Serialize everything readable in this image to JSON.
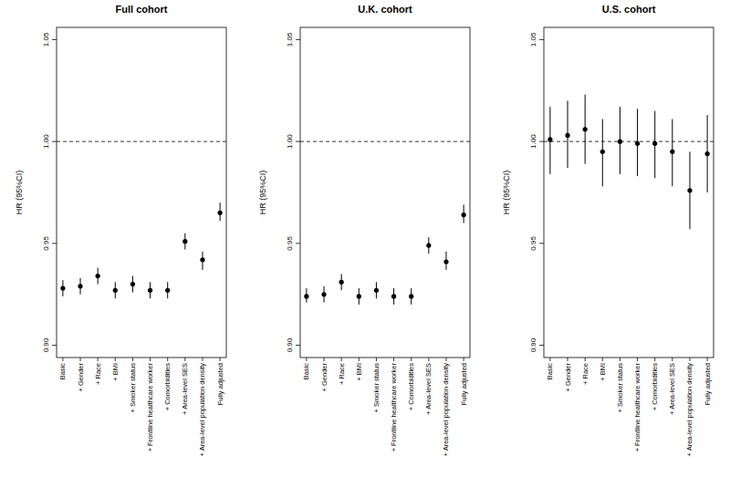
{
  "chart_data": [
    {
      "type": "scatter",
      "title": "Full cohort",
      "y_label": "HR (95%CI)",
      "color": "#000000",
      "marker": "circle",
      "categories": [
        "Basic",
        "+ Gender",
        "+ Race",
        "+ BMI",
        "+ Smoker status",
        "+ Frontline healthcare worker",
        "+ Comorbidities",
        "+ Area-level SES",
        "+ Area-level population density",
        "Fully adjusted"
      ],
      "values": [
        0.928,
        0.929,
        0.934,
        0.927,
        0.93,
        0.927,
        0.927,
        0.951,
        0.942,
        0.965
      ],
      "ci_lower": [
        0.924,
        0.925,
        0.93,
        0.923,
        0.926,
        0.923,
        0.923,
        0.947,
        0.937,
        0.961
      ],
      "ci_upper": [
        0.932,
        0.933,
        0.938,
        0.931,
        0.934,
        0.931,
        0.931,
        0.955,
        0.946,
        0.97
      ],
      "reference_line": 1,
      "ylim": [
        0.894,
        1.056
      ],
      "yticks": [
        {
          "value": 0.9,
          "label": "0.90"
        },
        {
          "value": 0.95,
          "label": "0.95"
        },
        {
          "value": 1,
          "label": "1.00"
        },
        {
          "value": 1.05,
          "label": "1.05"
        }
      ]
    },
    {
      "type": "scatter",
      "title": "U.K. cohort",
      "y_label": "HR (95%CI)",
      "color": "#000000",
      "marker": "circle",
      "categories": [
        "Basic",
        "+ Gender",
        "+ Race",
        "+ BMI",
        "+ Smoker status",
        "+ Frontline healthcare worker",
        "+ Comorbidities",
        "+ Area-level SES",
        "+ Area-level population density",
        "Fully adjusted"
      ],
      "values": [
        0.924,
        0.925,
        0.931,
        0.924,
        0.927,
        0.924,
        0.924,
        0.949,
        0.941,
        0.964
      ],
      "ci_lower": [
        0.921,
        0.921,
        0.927,
        0.92,
        0.923,
        0.92,
        0.92,
        0.945,
        0.937,
        0.96
      ],
      "ci_upper": [
        0.928,
        0.929,
        0.935,
        0.928,
        0.931,
        0.928,
        0.928,
        0.953,
        0.946,
        0.969
      ],
      "reference_line": 1,
      "ylim": [
        0.894,
        1.056
      ],
      "yticks": [
        {
          "value": 0.9,
          "label": "0.90"
        },
        {
          "value": 0.95,
          "label": "0.95"
        },
        {
          "value": 1,
          "label": "1.00"
        },
        {
          "value": 1.05,
          "label": "1.05"
        }
      ]
    },
    {
      "type": "scatter",
      "title": "U.S. cohort",
      "y_label": "HR (95%CI)",
      "color": "#000000",
      "marker": "circle",
      "categories": [
        "Basic",
        "+ Gender",
        "+ Race",
        "+ BMI",
        "+ Smoker status",
        "+ Frontline healthcare worker",
        "+ Comorbidities",
        "+ Area-level SES",
        "+ Area-level population density",
        "Fully adjusted"
      ],
      "values": [
        1.001,
        1.003,
        1.006,
        0.995,
        1.0,
        0.999,
        0.999,
        0.995,
        0.976,
        0.994
      ],
      "ci_lower": [
        0.984,
        0.987,
        0.989,
        0.978,
        0.984,
        0.983,
        0.982,
        0.978,
        0.957,
        0.975
      ],
      "ci_upper": [
        1.017,
        1.02,
        1.023,
        1.011,
        1.017,
        1.016,
        1.015,
        1.011,
        0.995,
        1.013
      ],
      "reference_line": 1,
      "ylim": [
        0.894,
        1.056
      ],
      "yticks": [
        {
          "value": 0.9,
          "label": "0.90"
        },
        {
          "value": 0.95,
          "label": "0.95"
        },
        {
          "value": 1,
          "label": "1.00"
        },
        {
          "value": 1.05,
          "label": "1.05"
        }
      ]
    }
  ]
}
